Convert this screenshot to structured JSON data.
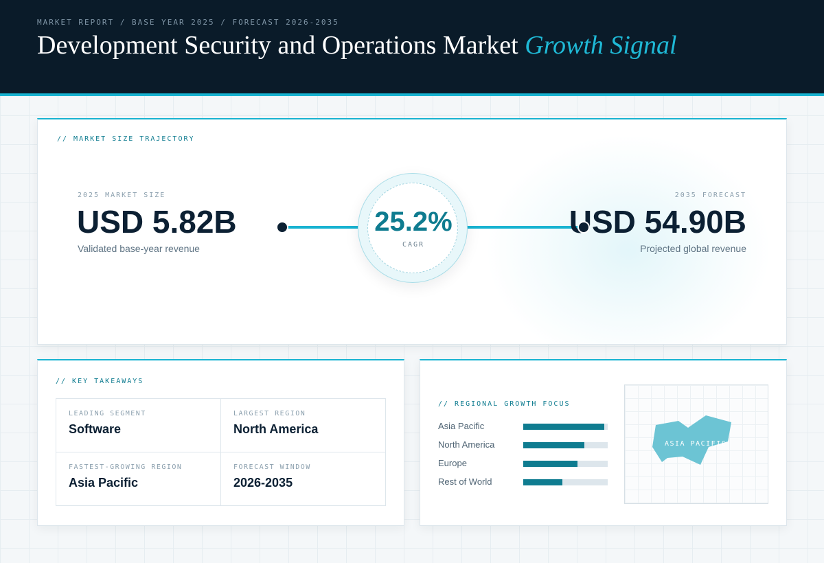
{
  "header": {
    "eyebrow": "MARKET REPORT / BASE YEAR 2025 / FORECAST 2026-2035",
    "title_main": "Development Security and Operations Market ",
    "title_accent": "Growth Signal"
  },
  "trajectory": {
    "label": "// MARKET SIZE TRAJECTORY",
    "base": {
      "eyebrow": "2025 MARKET SIZE",
      "value": "USD 5.82B",
      "sub": "Validated base-year revenue"
    },
    "forecast": {
      "eyebrow": "2035 FORECAST",
      "value": "USD 54.90B",
      "sub": "Projected global revenue"
    },
    "cagr": {
      "value": "25.2%",
      "label": "CAGR"
    }
  },
  "takeaways": {
    "label": "// KEY TAKEAWAYS",
    "items": [
      {
        "key": "LEADING SEGMENT",
        "value": "Software"
      },
      {
        "key": "LARGEST REGION",
        "value": "North America"
      },
      {
        "key": "FASTEST-GROWING REGION",
        "value": "Asia Pacific"
      },
      {
        "key": "FORECAST WINDOW",
        "value": "2026-2035"
      }
    ]
  },
  "regional": {
    "label": "// REGIONAL GROWTH FOCUS",
    "bars": [
      {
        "name": "Asia Pacific",
        "fraction": 0.96
      },
      {
        "name": "North America",
        "fraction": 0.72
      },
      {
        "name": "Europe",
        "fraction": 0.64
      },
      {
        "name": "Rest of World",
        "fraction": 0.46
      }
    ],
    "map_label": "ASIA PACIFIC"
  },
  "colors": {
    "accent": "#18b3d1",
    "accent_dark": "#0f7c90",
    "navy": "#0a1b29",
    "map_fill": "#6cc4d4"
  }
}
